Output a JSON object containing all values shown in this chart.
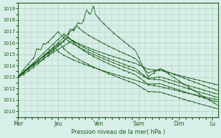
{
  "title": "Pression niveau de la mer( hPa )",
  "bg_color": "#d8eee8",
  "grid_color": "#aacebb",
  "line_color": "#1a5c1a",
  "ylim": [
    1009.5,
    1019.5
  ],
  "yticks": [
    1010,
    1011,
    1012,
    1013,
    1014,
    1015,
    1016,
    1017,
    1018,
    1019
  ],
  "x_day_labels": [
    "Mer",
    "Jeu",
    "Ven",
    "Sam",
    "Dim",
    "Lu"
  ],
  "x_day_positions": [
    0,
    48,
    96,
    144,
    192,
    232
  ],
  "total_points": 240
}
